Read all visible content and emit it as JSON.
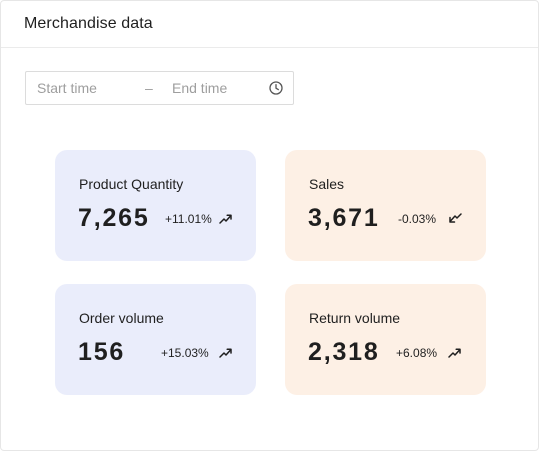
{
  "panel": {
    "title": "Merchandise data"
  },
  "date_range": {
    "start_placeholder": "Start time",
    "separator": "–",
    "end_placeholder": "End time",
    "icon": "clock-icon"
  },
  "cards": [
    {
      "label": "Product Quantity",
      "value": "7,265",
      "change": "+11.01%",
      "trend": "up",
      "trend_icon": "trend-up-icon",
      "background": "#eaedfb"
    },
    {
      "label": "Sales",
      "value": "3,671",
      "change": "-0.03%",
      "trend": "down",
      "trend_icon": "trend-down-icon",
      "background": "#fdf0e5"
    },
    {
      "label": "Order volume",
      "value": "156",
      "change": "+15.03%",
      "trend": "up",
      "trend_icon": "trend-up-icon",
      "background": "#eaedfb"
    },
    {
      "label": "Return volume",
      "value": "2,318",
      "change": "+6.08%",
      "trend": "up",
      "trend_icon": "trend-up-icon",
      "background": "#fdf0e5"
    }
  ]
}
